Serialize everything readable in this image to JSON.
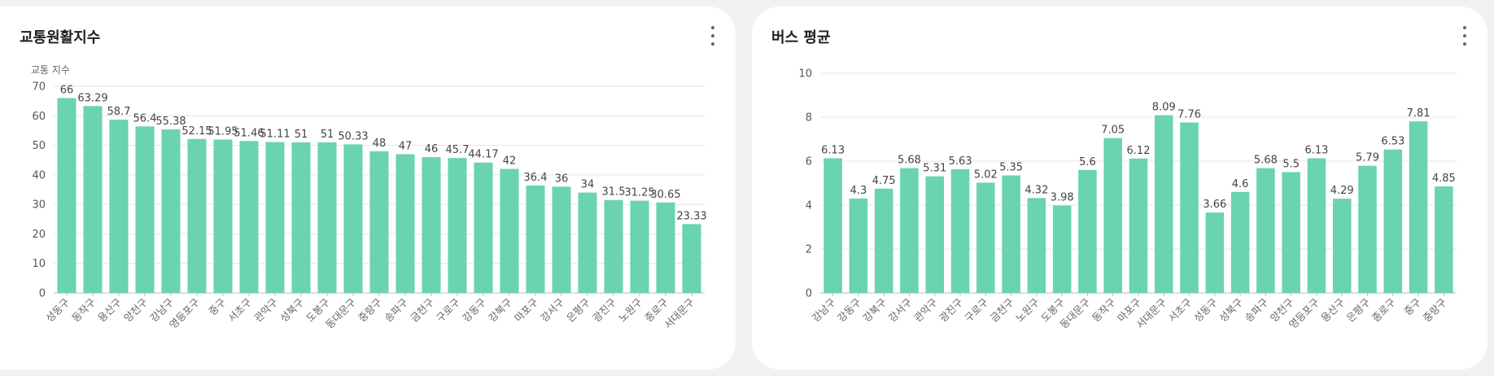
{
  "card1": {
    "title": "교통원활지수",
    "menu_icon": "more-vertical-icon"
  },
  "card2": {
    "title": "버스 평균",
    "menu_icon": "more-vertical-icon"
  },
  "colors": {
    "bar": "#6ad3b1",
    "grid": "#e6e6e6",
    "axis": "#bdbdbd"
  },
  "chart_data": [
    {
      "type": "bar",
      "title": "교통원활지수",
      "ylabel": "교통 지수",
      "xlabel": "",
      "ylim": [
        0,
        70
      ],
      "yticks": [
        0,
        10,
        20,
        30,
        40,
        50,
        60,
        70
      ],
      "grid": true,
      "categories": [
        "성동구",
        "동작구",
        "용산구",
        "양천구",
        "강남구",
        "영등포구",
        "중구",
        "서초구",
        "관악구",
        "성북구",
        "도봉구",
        "동대문구",
        "중랑구",
        "송파구",
        "금천구",
        "구로구",
        "강동구",
        "강북구",
        "마포구",
        "강서구",
        "은평구",
        "광진구",
        "노원구",
        "종로구",
        "서대문구"
      ],
      "values": [
        66,
        63.29,
        58.7,
        56.4,
        55.38,
        52.15,
        51.95,
        51.46,
        51.11,
        51,
        51,
        50.33,
        48,
        47,
        46,
        45.7,
        44.17,
        42,
        36.4,
        36,
        34,
        31.5,
        31.25,
        30.65,
        23.33
      ],
      "labels": [
        "66",
        "63.29",
        "58.7",
        "56.4",
        "55.38",
        "52.15",
        "51.95",
        "51.46",
        "51.11",
        "51",
        "51",
        "50.33",
        "48",
        "47",
        "46",
        "45.7",
        "44.17",
        "42",
        "36.4",
        "36",
        "34",
        "31.5",
        "31.25",
        "30.65",
        "23.33"
      ]
    },
    {
      "type": "bar",
      "title": "버스 평균",
      "ylabel": "",
      "xlabel": "",
      "ylim": [
        0,
        10
      ],
      "yticks": [
        0,
        2,
        4,
        6,
        8,
        10
      ],
      "grid": true,
      "categories": [
        "강남구",
        "강동구",
        "강북구",
        "강서구",
        "관악구",
        "광진구",
        "구로구",
        "금천구",
        "노원구",
        "도봉구",
        "동대문구",
        "동작구",
        "마포구",
        "서대문구",
        "서초구",
        "성동구",
        "성북구",
        "송파구",
        "양천구",
        "영등포구",
        "용산구",
        "은평구",
        "종로구",
        "중구",
        "중랑구"
      ],
      "values": [
        6.13,
        4.3,
        4.75,
        5.68,
        5.31,
        5.63,
        5.02,
        5.35,
        4.32,
        3.98,
        5.6,
        7.05,
        6.12,
        8.09,
        7.76,
        3.66,
        4.6,
        5.68,
        5.5,
        6.13,
        4.29,
        5.79,
        6.53,
        7.81,
        4.85
      ],
      "labels": [
        "6.13",
        "4.3",
        "4.75",
        "5.68",
        "5.31",
        "5.63",
        "5.02",
        "5.35",
        "4.32",
        "3.98",
        "5.6",
        "7.05",
        "6.12",
        "8.09",
        "7.76",
        "3.66",
        "4.6",
        "5.68",
        "5.5",
        "6.13",
        "4.29",
        "5.79",
        "6.53",
        "7.81",
        "4.85"
      ]
    }
  ]
}
